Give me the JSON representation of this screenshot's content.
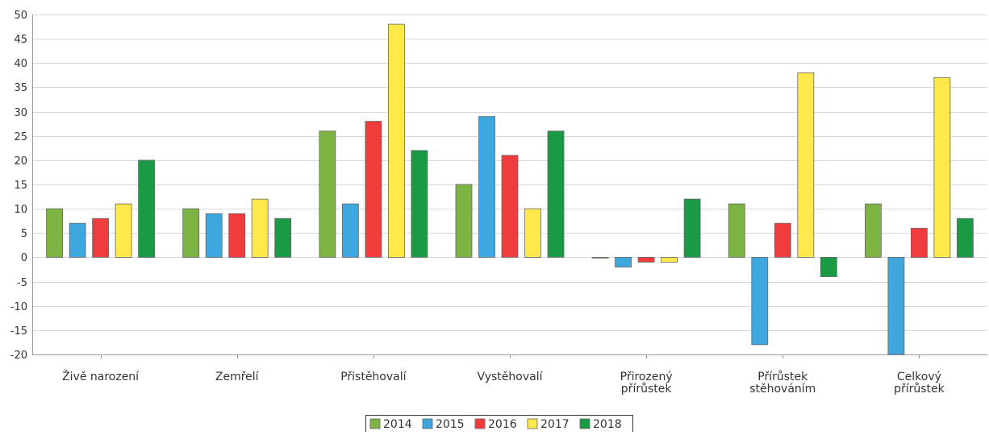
{
  "chart_data": {
    "type": "bar",
    "title": "",
    "xlabel": "",
    "ylabel": "",
    "ylim": [
      -20,
      50
    ],
    "y_tick_step": 5,
    "grid": true,
    "legend_position": "bottom",
    "categories": [
      [
        "Živě narození"
      ],
      [
        "Zemřelí"
      ],
      [
        "Přistěhovalí"
      ],
      [
        "Vystěhovalí"
      ],
      [
        "Přirozený",
        "přírůstek"
      ],
      [
        "Přírůstek",
        "stěhováním"
      ],
      [
        "Celkový",
        "přírůstek"
      ]
    ],
    "series": [
      {
        "name": "2014",
        "color": "#7cb342",
        "values": [
          10,
          10,
          26,
          15,
          0,
          11,
          11
        ]
      },
      {
        "name": "2015",
        "color": "#3fa7e0",
        "values": [
          7,
          9,
          11,
          29,
          -2,
          -18,
          -20
        ]
      },
      {
        "name": "2016",
        "color": "#f03c3c",
        "values": [
          8,
          9,
          28,
          21,
          -1,
          7,
          6
        ]
      },
      {
        "name": "2017",
        "color": "#ffe84a",
        "values": [
          11,
          12,
          48,
          10,
          -1,
          38,
          37
        ]
      },
      {
        "name": "2018",
        "color": "#1a9a44",
        "values": [
          20,
          8,
          22,
          26,
          12,
          -4,
          8
        ]
      }
    ]
  }
}
